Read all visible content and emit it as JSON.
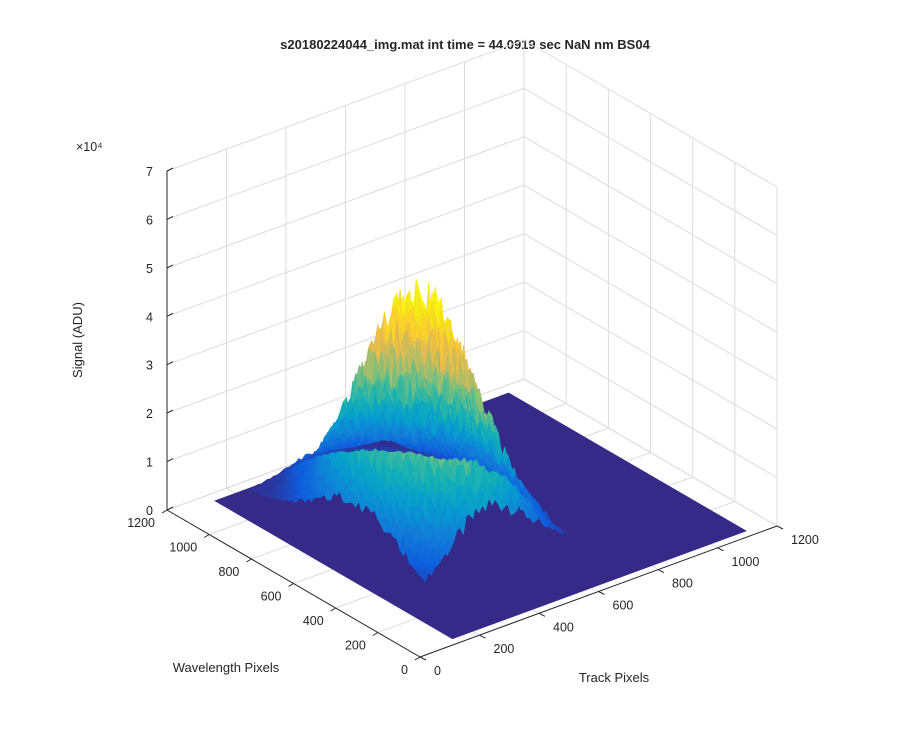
{
  "chart_data": {
    "type": "surface",
    "title": "s20180224044_img.mat int time = 44.0919 sec  NaN nm BS04",
    "xlabel": "Track Pixels",
    "ylabel": "Wavelength Pixels",
    "zlabel": "Signal (ADU)",
    "z_exponent_label": "×10⁴",
    "xlim": [
      0,
      1200
    ],
    "ylim": [
      0,
      1200
    ],
    "zlim": [
      0,
      70000
    ],
    "x_ticks": [
      "0",
      "200",
      "400",
      "600",
      "800",
      "1000",
      "1200"
    ],
    "y_ticks": [
      "0",
      "200",
      "400",
      "600",
      "800",
      "1000",
      "1200"
    ],
    "z_ticks": [
      "0",
      "1",
      "2",
      "3",
      "4",
      "5",
      "6",
      "7"
    ],
    "grid": true,
    "colormap": "parula",
    "floor_color": "#352a87",
    "peak_color": "#f9fb0e",
    "features": [
      {
        "x_center": 450,
        "x_width": 130,
        "y_center": 620,
        "y_width": 210,
        "peak": 47000
      },
      {
        "x_center": 430,
        "x_width": 60,
        "y_center": 880,
        "y_width": 120,
        "peak": 5000
      },
      {
        "x_center": 360,
        "x_width": 25,
        "y_center": 1080,
        "y_width": 25,
        "peak": 1500
      }
    ]
  }
}
